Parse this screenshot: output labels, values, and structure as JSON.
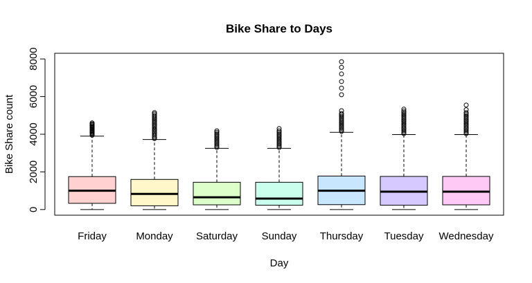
{
  "chart_data": {
    "type": "boxplot",
    "title": "Bike Share to Days",
    "xlabel": "Day",
    "ylabel": "Bike Share count",
    "ylim": [
      -300,
      8300
    ],
    "yticks": [
      0,
      2000,
      4000,
      6000,
      8000
    ],
    "yticklabels": [
      "0",
      "2000",
      "4000",
      "6000",
      "8000"
    ],
    "categories": [
      "Friday",
      "Monday",
      "Saturday",
      "Sunday",
      "Thursday",
      "Tuesday",
      "Wednesday"
    ],
    "boxes": [
      {
        "category": "Friday",
        "color": "#FFD1D1",
        "min": 0,
        "q1": 330,
        "median": 1000,
        "q3": 1750,
        "max": 3900,
        "outliers": [
          3950,
          4000,
          4050,
          4100,
          4150,
          4200,
          4250,
          4300,
          4350,
          4400,
          4450,
          4500,
          4550,
          4600
        ]
      },
      {
        "category": "Monday",
        "color": "#FFF7C9",
        "min": 0,
        "q1": 200,
        "median": 830,
        "q3": 1600,
        "max": 3720,
        "outliers": [
          3770,
          3830,
          3900,
          3970,
          4050,
          4130,
          4210,
          4290,
          4370,
          4450,
          4530,
          4610,
          4690,
          4770,
          4850,
          4930,
          5000,
          5080,
          5150
        ]
      },
      {
        "category": "Saturday",
        "color": "#DDFFC9",
        "min": 0,
        "q1": 250,
        "median": 650,
        "q3": 1450,
        "max": 3250,
        "outliers": [
          3300,
          3380,
          3460,
          3540,
          3620,
          3700,
          3780,
          3860,
          3940,
          4020,
          4100,
          4180
        ]
      },
      {
        "category": "Sunday",
        "color": "#C9FFEC",
        "min": 0,
        "q1": 230,
        "median": 580,
        "q3": 1450,
        "max": 3250,
        "outliers": [
          3300,
          3380,
          3460,
          3540,
          3620,
          3700,
          3780,
          3860,
          3940,
          4020,
          4100,
          4180,
          4300
        ]
      },
      {
        "category": "Thursday",
        "color": "#C9E6FF",
        "min": 0,
        "q1": 260,
        "median": 1000,
        "q3": 1780,
        "max": 4100,
        "outliers": [
          4150,
          4230,
          4310,
          4390,
          4470,
          4550,
          4630,
          4710,
          4790,
          4870,
          4950,
          5030,
          5100,
          5250,
          6100,
          6450,
          6800,
          7200,
          7550,
          7850
        ]
      },
      {
        "category": "Tuesday",
        "color": "#D6C9FF",
        "min": 0,
        "q1": 230,
        "median": 950,
        "q3": 1760,
        "max": 3980,
        "outliers": [
          4030,
          4110,
          4190,
          4270,
          4350,
          4430,
          4510,
          4590,
          4670,
          4750,
          4830,
          4910,
          4990,
          5070,
          5150,
          5230,
          5330
        ]
      },
      {
        "category": "Wednesday",
        "color": "#FFC9F5",
        "min": 0,
        "q1": 250,
        "median": 950,
        "q3": 1760,
        "max": 3980,
        "outliers": [
          4030,
          4110,
          4190,
          4270,
          4350,
          4430,
          4510,
          4590,
          4670,
          4750,
          4830,
          4910,
          4990,
          5070,
          5150,
          5300,
          5550
        ]
      }
    ],
    "grid": false,
    "legend": "none"
  }
}
